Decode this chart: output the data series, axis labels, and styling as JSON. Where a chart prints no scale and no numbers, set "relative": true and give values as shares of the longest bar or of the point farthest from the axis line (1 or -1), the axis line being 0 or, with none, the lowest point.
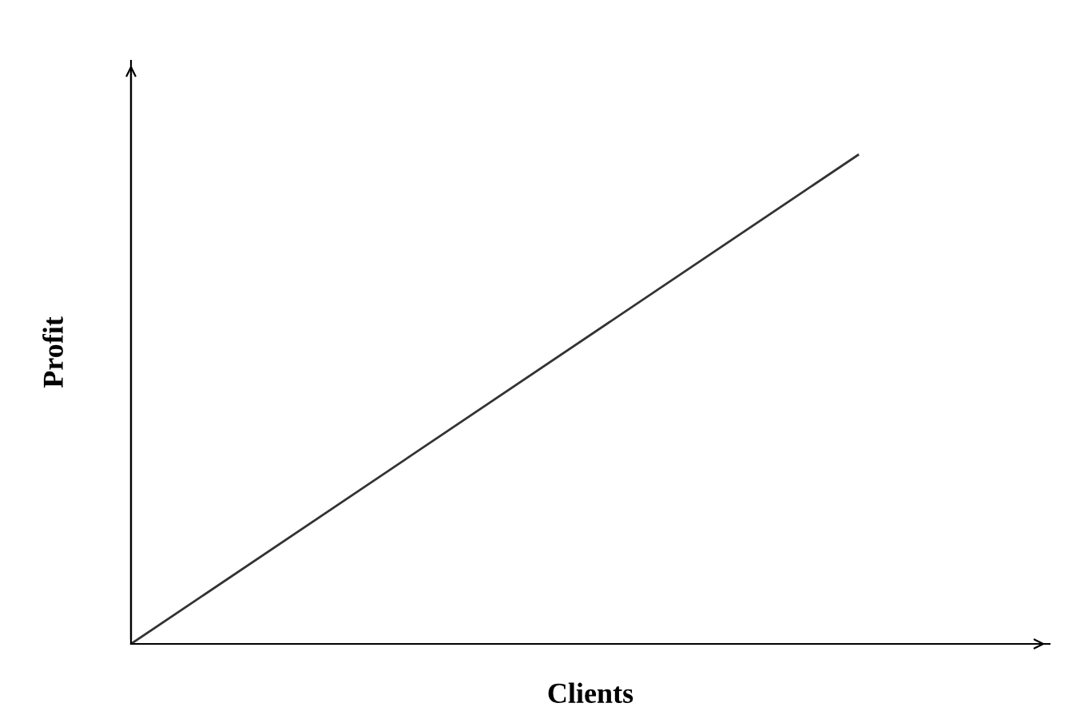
{
  "chart_data": {
    "type": "line",
    "xlabel": "Clients",
    "ylabel": "Profit",
    "categories": [
      null,
      null
    ],
    "series": [
      {
        "color": "#333333",
        "values": [
          0,
          1
        ]
      }
    ],
    "relative": true,
    "grid": false,
    "legend": false,
    "marker": "none",
    "line_style": "solid"
  }
}
